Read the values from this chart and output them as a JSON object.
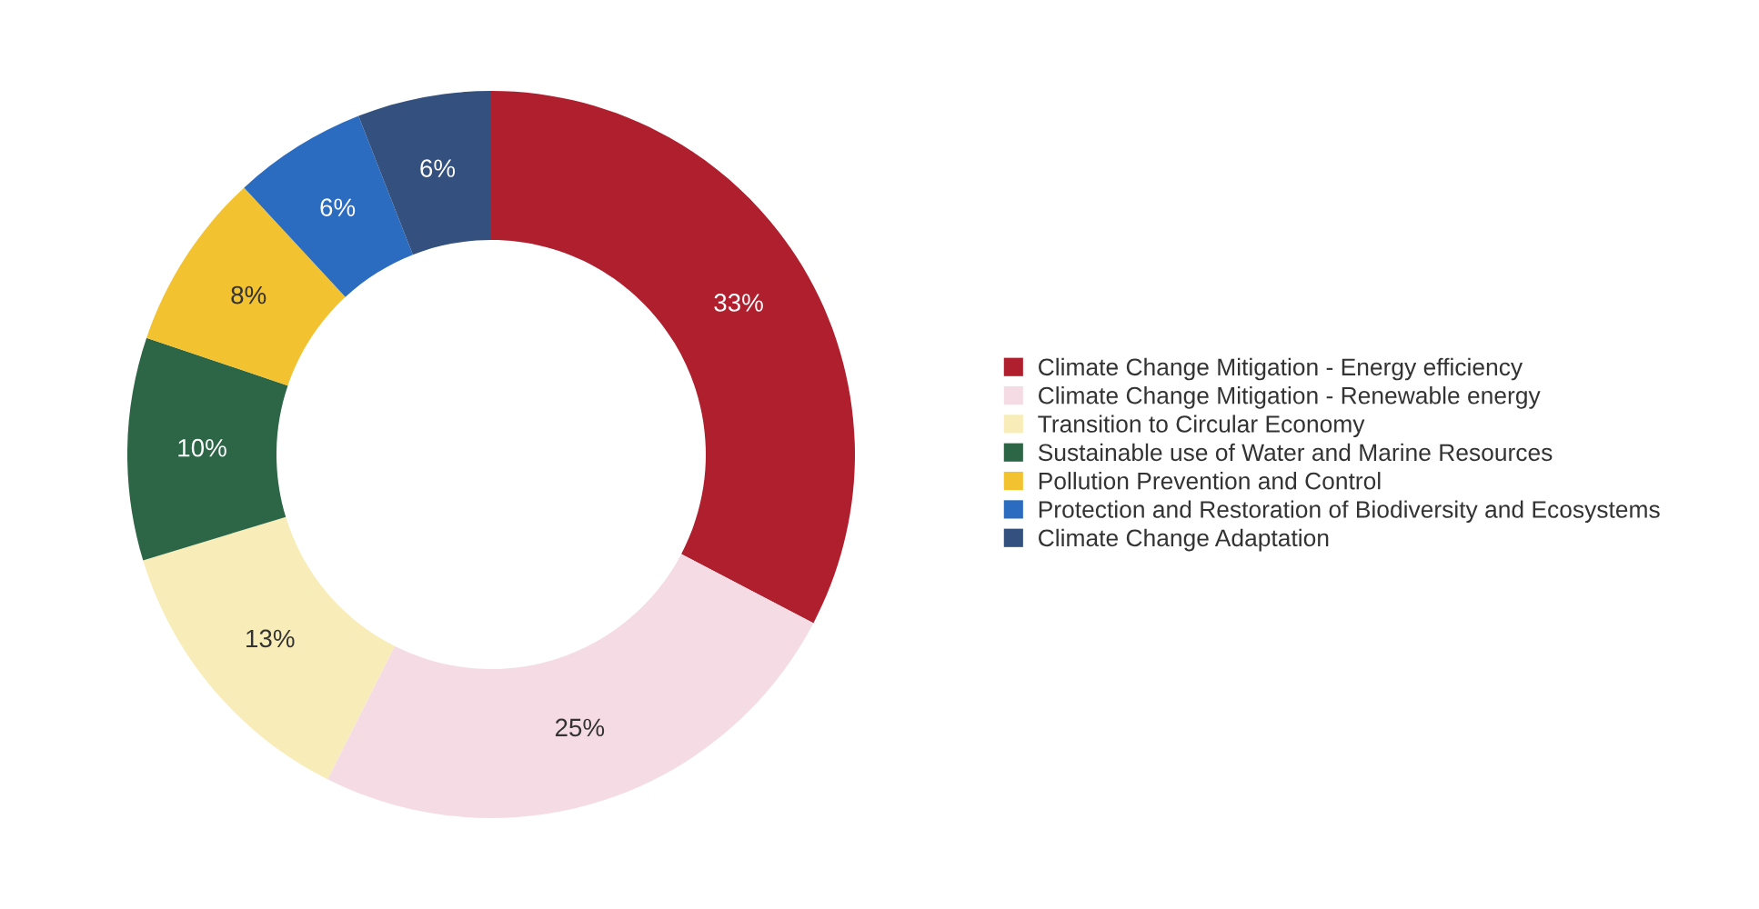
{
  "chart_data": {
    "type": "donut",
    "categories": [
      "Climate Change Mitigation - Energy efficiency",
      "Climate Change Mitigation - Renewable energy",
      "Transition to Circular Economy",
      "Sustainable use of Water and Marine Resources",
      "Pollution Prevention and Control",
      "Protection and Restoration of Biodiversity and Ecosystems",
      "Climate Change Adaptation"
    ],
    "values": [
      33,
      25,
      13,
      10,
      8,
      6,
      6
    ],
    "colors": [
      "#b01f2e",
      "#f5dce4",
      "#f8edb8",
      "#2d6646",
      "#f2c230",
      "#2b6cc0",
      "#34507f"
    ],
    "value_labels": [
      "33%",
      "25%",
      "13%",
      "10%",
      "8%",
      "6%",
      "6%"
    ],
    "legend": "right"
  }
}
